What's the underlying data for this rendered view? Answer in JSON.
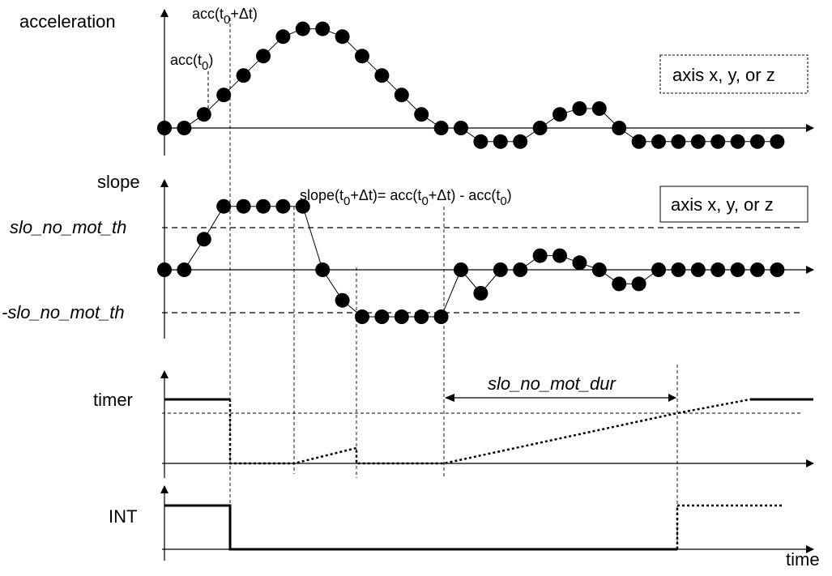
{
  "labels": {
    "acceleration": "acceleration",
    "acc_t0_main": "acc(t",
    "acc_t0_sub": "0",
    "acc_t0_close": ")",
    "acc_dt_main": "acc(t",
    "acc_dt_sub": "0",
    "acc_dt_rest": "+Δt)",
    "axis_box_top": "axis x, y, or z",
    "slope": "slope",
    "slo_th": "slo_no_mot_th",
    "neg_slo_th": "-slo_no_mot_th",
    "axis_box_slope": "axis x, y, or z",
    "formula_a": "slope(t",
    "formula_a_sub": "0",
    "formula_b": "+Δt)= acc(t",
    "formula_b_sub": "0",
    "formula_c": "+Δt) - acc(t",
    "formula_c_sub": "0",
    "formula_d": ")",
    "dur": "slo_no_mot_dur",
    "timer": "timer",
    "int": "INT",
    "time": "time"
  },
  "chart_data": {
    "type": "line",
    "acceleration_samples": [
      0,
      0,
      0.7,
      1.7,
      2.7,
      3.7,
      4.7,
      5.1,
      5.1,
      4.7,
      3.7,
      2.7,
      1.7,
      0.7,
      0,
      0,
      -0.7,
      -0.7,
      -0.7,
      0,
      0.7,
      1.0,
      1.0,
      0,
      -0.7,
      -0.7,
      -0.7,
      -0.7,
      -0.7,
      -0.7,
      -0.7,
      -0.7
    ],
    "slope_samples": [
      0,
      0,
      1.3,
      2.7,
      2.7,
      2.7,
      2.7,
      2.7,
      0,
      -1.3,
      -2.0,
      -2.0,
      -2.0,
      -2.0,
      -2.0,
      0,
      -1.0,
      0,
      0,
      0.6,
      0.6,
      0.3,
      0,
      -0.6,
      -0.6,
      0,
      0,
      0,
      0,
      0,
      0,
      0
    ],
    "slo_no_mot_th": 1.7,
    "grid": false
  }
}
